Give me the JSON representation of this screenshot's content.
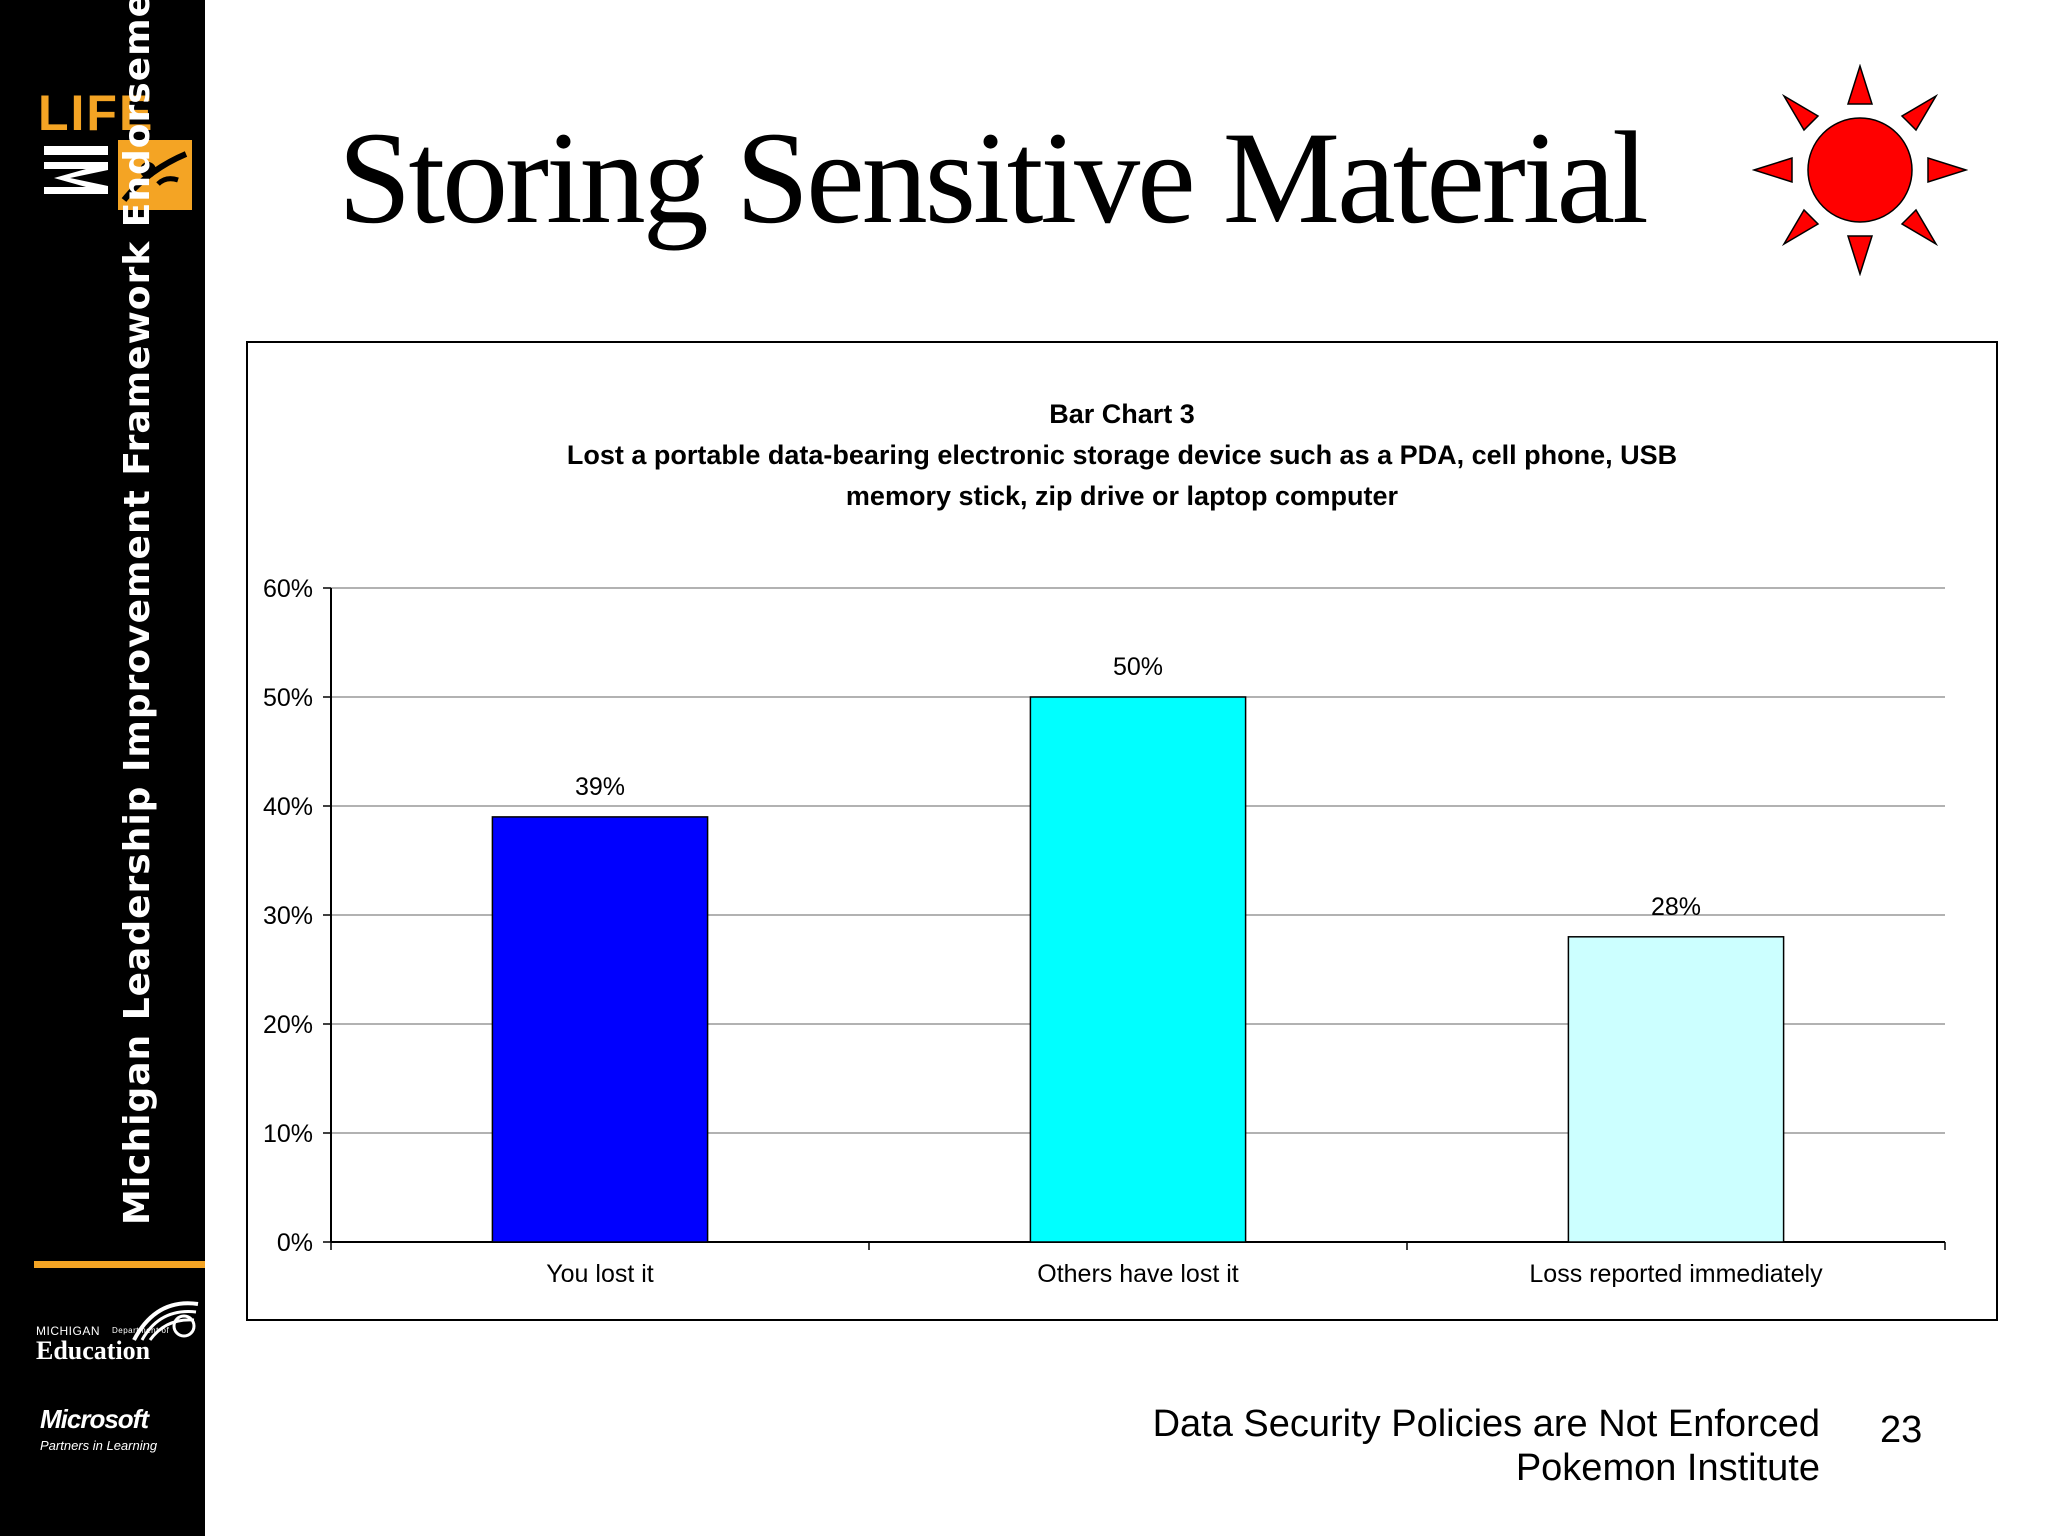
{
  "sidebar": {
    "logo_top": "LIFE",
    "logo_bottom": "MI",
    "vertical_title": "Michigan Leadership Improvement Framework Endorsement",
    "partner1_small": "MICHIGAN",
    "partner1_dept": "Department of",
    "partner1_big": "Education",
    "partner2_big": "Microsoft",
    "partner2_small": "Partners in Learning"
  },
  "slide": {
    "title": "Storing Sensitive Material",
    "footer_line1": "Data Security Policies are Not Enforced",
    "footer_line2": "Pokemon Institute",
    "page_number": "23"
  },
  "colors": {
    "accent_orange": "#f4a424",
    "sun_red": "#ff0000"
  },
  "chart_data": {
    "type": "bar",
    "title_lines": [
      "Bar Chart 3",
      "Lost a portable data-bearing electronic storage device such as a PDA, cell phone, USB",
      "memory stick, zip drive or laptop computer"
    ],
    "categories": [
      "You lost it",
      "Others have lost it",
      "Loss reported immediately"
    ],
    "values": [
      39,
      50,
      28
    ],
    "value_labels": [
      "39%",
      "50%",
      "28%"
    ],
    "bar_colors": [
      "#0000ff",
      "#00ffff",
      "#ccffff"
    ],
    "y_ticks": [
      "0%",
      "10%",
      "20%",
      "30%",
      "40%",
      "50%",
      "60%"
    ],
    "ylim": [
      0,
      60
    ],
    "grid": true,
    "legend": false
  }
}
